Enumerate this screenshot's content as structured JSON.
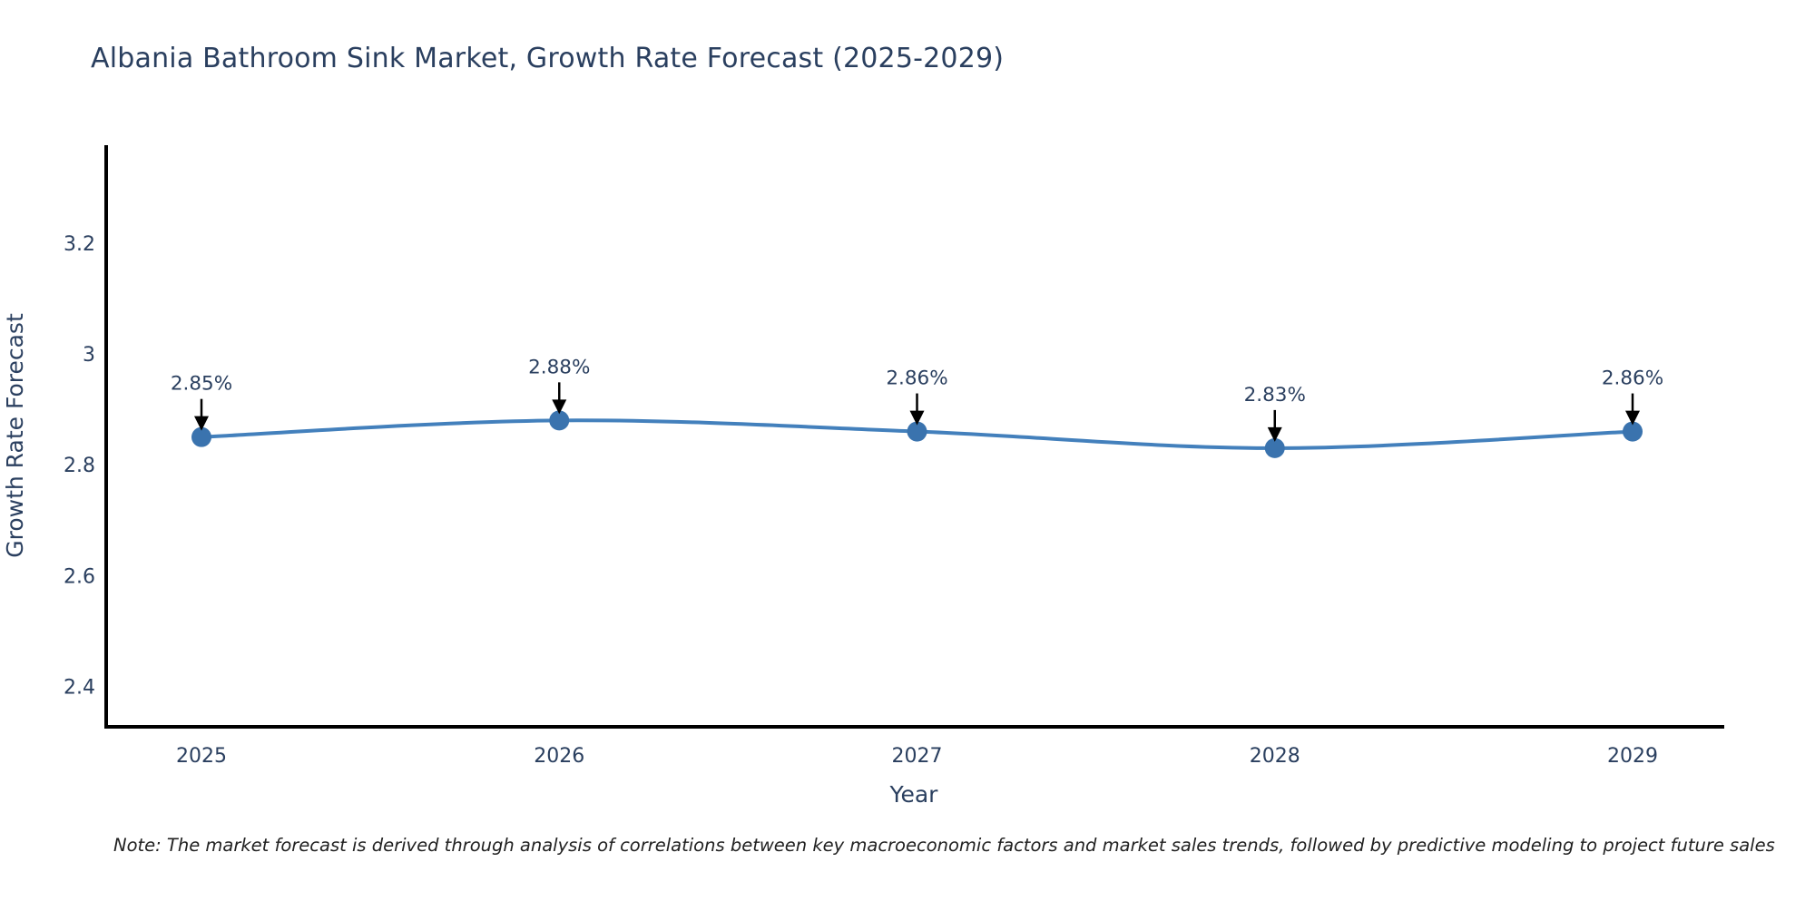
{
  "title": "Albania Bathroom Sink Market, Growth Rate Forecast (2025-2029)",
  "note": "Note: The market forecast is derived through analysis of correlations between key macroeconomic factors and market sales trends, followed by predictive modeling to project future sales",
  "chart_data": {
    "type": "line",
    "title": "Albania Bathroom Sink Market, Growth Rate Forecast (2025-2029)",
    "x": [
      "2025",
      "2026",
      "2027",
      "2028",
      "2029"
    ],
    "series": [
      {
        "name": "Growth Rate Forecast",
        "values": [
          2.85,
          2.88,
          2.86,
          2.83,
          2.86
        ]
      }
    ],
    "point_labels": [
      "2.85%",
      "2.88%",
      "2.86%",
      "2.83%",
      "2.86%"
    ],
    "xlabel": "Year",
    "ylabel": "Growth Rate Forecast",
    "y_ticks": [
      "3.2",
      "3",
      "2.8",
      "2.6",
      "2.4"
    ],
    "ylim": [
      2.33,
      3.38
    ],
    "grid": false,
    "legend": "none",
    "annotation_style": "value label with downward black arrow to marker"
  },
  "colors": {
    "line": "#4380bc",
    "marker": "#3a73ae",
    "axis": "#000000",
    "text": "#2a3f5f",
    "annotation_text": "#2a3f5f",
    "arrow": "#000000",
    "note_text": "#222222",
    "background": "#ffffff"
  }
}
